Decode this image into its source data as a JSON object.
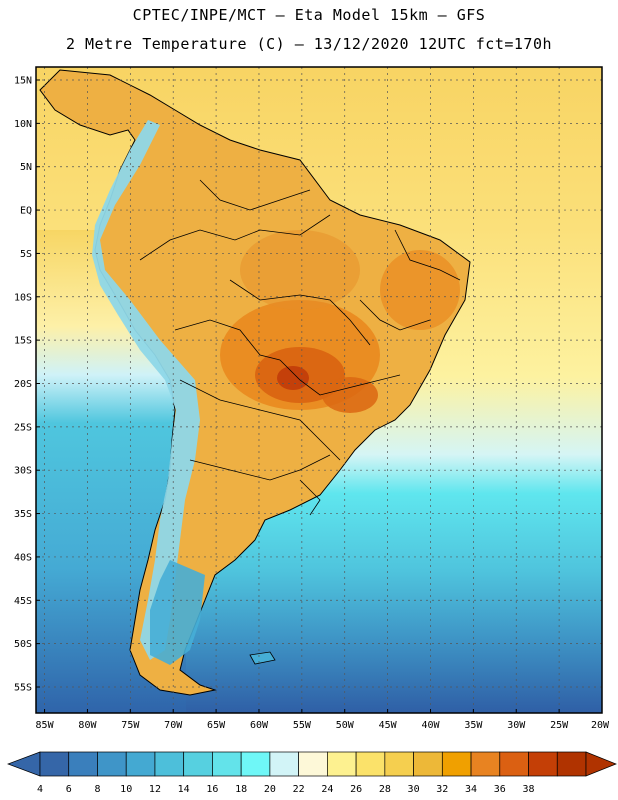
{
  "title_line1": "CPTEC/INPE/MCT –  Eta Model 15km – GFS",
  "title_line2": "2 Metre Temperature (C) – 13/12/2020 12UTC fct=170h",
  "map": {
    "lat_labels": [
      "15N",
      "10N",
      "5N",
      "EQ",
      "5S",
      "10S",
      "15S",
      "20S",
      "25S",
      "30S",
      "35S",
      "40S",
      "45S",
      "50S",
      "55S"
    ],
    "lat_values": [
      15,
      10,
      5,
      0,
      -5,
      -10,
      -15,
      -20,
      -25,
      -30,
      -35,
      -40,
      -45,
      -50,
      -55
    ],
    "lon_labels": [
      "85W",
      "80W",
      "75W",
      "70W",
      "65W",
      "60W",
      "55W",
      "50W",
      "45W",
      "40W",
      "35W",
      "30W",
      "25W",
      "20W"
    ],
    "lon_values": [
      -85,
      -80,
      -75,
      -70,
      -65,
      -60,
      -55,
      -50,
      -45,
      -40,
      -35,
      -30,
      -25,
      -20
    ],
    "lon_range": [
      -86,
      -20
    ],
    "lat_range": [
      -58,
      16.5
    ]
  },
  "colorbar": {
    "labels": [
      "4",
      "6",
      "8",
      "10",
      "12",
      "14",
      "16",
      "18",
      "20",
      "22",
      "24",
      "26",
      "28",
      "30",
      "32",
      "34",
      "36",
      "38"
    ],
    "colors": [
      "#3566a8",
      "#3a7fbc",
      "#3f95c8",
      "#44a9d2",
      "#4dbfda",
      "#56d0e0",
      "#63e3ea",
      "#6ff7f7",
      "#d2f4f7",
      "#fdf8d8",
      "#fdf190",
      "#fbe26a",
      "#f5cf4f",
      "#edb838",
      "#f0a000",
      "#e88321",
      "#db6012",
      "#c43f06",
      "#b03300"
    ],
    "left_arrow_color": "#3566a8",
    "right_arrow_color": "#b03300"
  },
  "colors": {
    "ocean_cold": "#2f5fa6",
    "ocean_cool": "#4aa7d3",
    "ocean_cyan": "#5fe6ee",
    "ocean_warm": "#fdf4a0",
    "ocean_hot": "#f8d463",
    "land_base": "#eeb043",
    "land_hot": "#e98a1f",
    "land_hotter": "#db6712",
    "land_hottest": "#c4400a",
    "andes": "#8ed7e8",
    "patagonia": "#46aed6"
  }
}
